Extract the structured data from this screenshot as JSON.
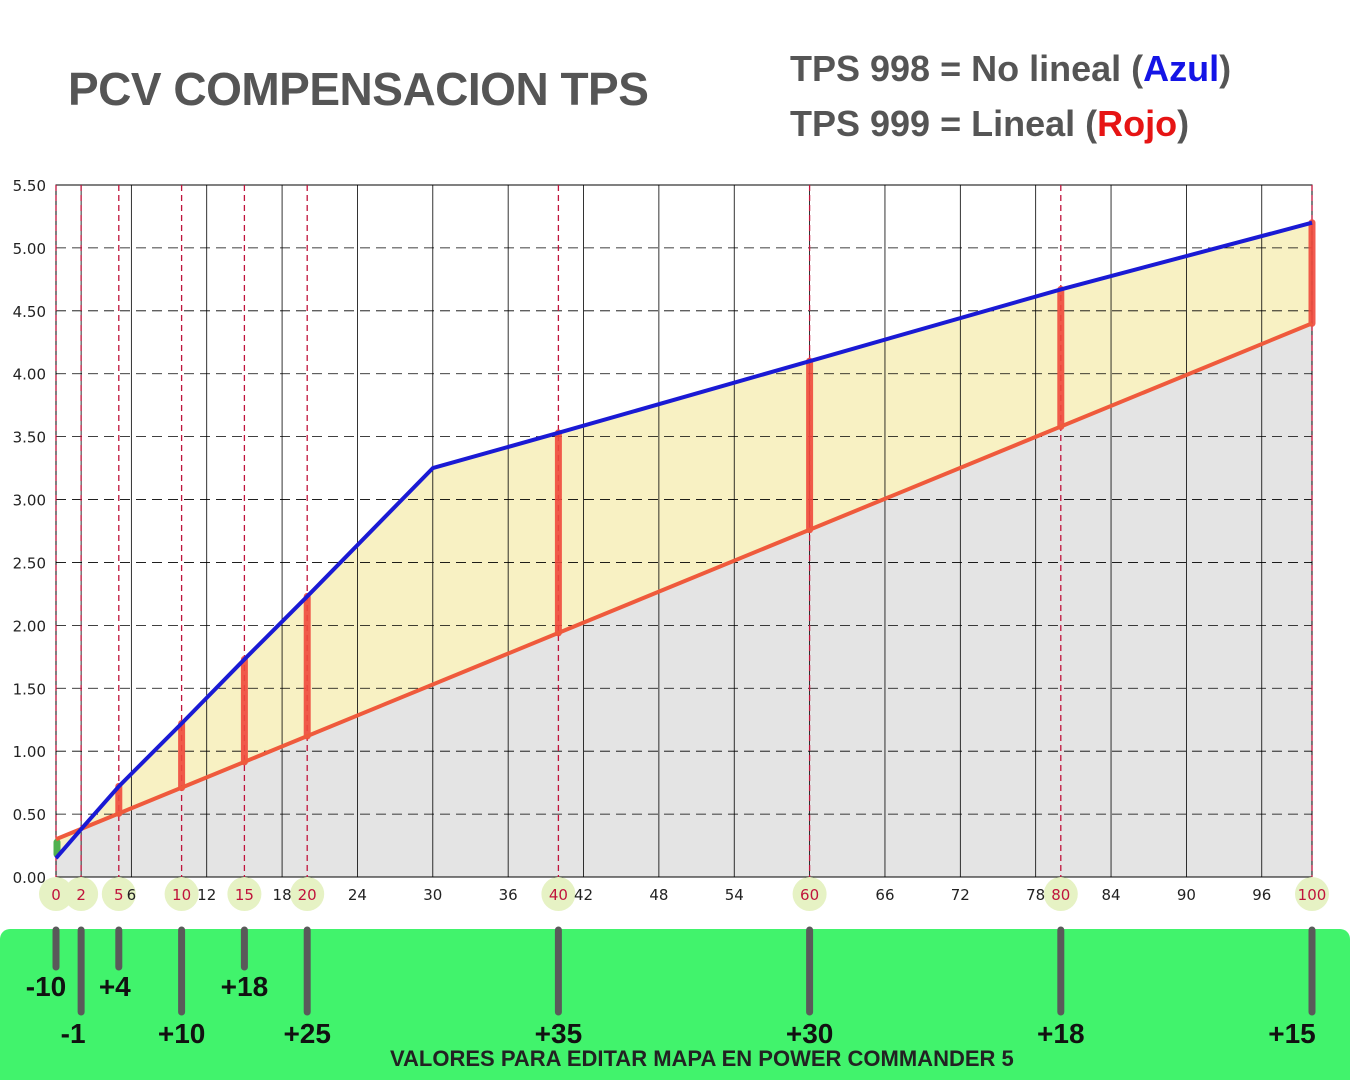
{
  "title": "PCV COMPENSACION TPS",
  "legend": {
    "line1": {
      "prefix": "TPS 998 = No lineal (",
      "highlight": "Azul",
      "suffix": ")",
      "highlight_color": "#1414e6"
    },
    "line2": {
      "prefix": "TPS 999 = Lineal (",
      "highlight": "Rojo",
      "suffix": ")",
      "highlight_color": "#e61414"
    }
  },
  "footer": "VALORES PARA EDITAR MAPA EN POWER COMMANDER 5",
  "colors": {
    "blue_series": "#1a1ad4",
    "red_series": "#ef5a3c",
    "fill_between": "#f8f0c0",
    "fill_under": "#e4e4e4",
    "bars": "#f04a3c",
    "marker_circle": "#e6f2c4",
    "green_band": "#41f36c",
    "grid": "#000000",
    "guide": "#c0143c"
  },
  "chart_data": {
    "type": "line",
    "title": "PCV COMPENSACION TPS",
    "xlim": [
      0,
      100
    ],
    "ylim": [
      0,
      5.5
    ],
    "grid": true,
    "x_ticks": [
      0,
      2,
      6,
      12,
      18,
      24,
      30,
      36,
      42,
      48,
      54,
      60,
      66,
      72,
      78,
      84,
      90,
      96
    ],
    "y_ticks": [
      "0.00",
      "0.50",
      "1.00",
      "1.50",
      "2.00",
      "2.50",
      "3.00",
      "3.50",
      "4.00",
      "4.50",
      "5.00",
      "5.50"
    ],
    "series": [
      {
        "name": "TPS 998 = No lineal (Azul)",
        "color": "#1a1ad4",
        "points": [
          [
            0,
            0.15
          ],
          [
            2,
            0.38
          ],
          [
            5,
            0.72
          ],
          [
            10,
            1.22
          ],
          [
            15,
            1.73
          ],
          [
            20,
            2.23
          ],
          [
            30,
            3.25
          ],
          [
            40,
            3.53
          ],
          [
            60,
            4.1
          ],
          [
            80,
            4.67
          ],
          [
            100,
            5.2
          ]
        ]
      },
      {
        "name": "TPS 999 = Lineal (Rojo)",
        "color": "#ef5a3c",
        "points": [
          [
            0,
            0.3
          ],
          [
            100,
            4.4
          ]
        ]
      }
    ],
    "markers": [
      {
        "x": 0,
        "label": "0",
        "value": "-10",
        "row": 1
      },
      {
        "x": 2,
        "label": "2",
        "value": "-1",
        "row": 2
      },
      {
        "x": 5,
        "label": "5",
        "value": "+4",
        "row": 1
      },
      {
        "x": 10,
        "label": "10",
        "value": "+10",
        "row": 2
      },
      {
        "x": 15,
        "label": "15",
        "value": "+18",
        "row": 1
      },
      {
        "x": 20,
        "label": "20",
        "value": "+25",
        "row": 2
      },
      {
        "x": 40,
        "label": "40",
        "value": "+35",
        "row": 2
      },
      {
        "x": 60,
        "label": "60",
        "value": "+30",
        "row": 2
      },
      {
        "x": 80,
        "label": "80",
        "value": "+18",
        "row": 2
      },
      {
        "x": 100,
        "label": "100",
        "value": "+15",
        "row": 2
      }
    ]
  }
}
